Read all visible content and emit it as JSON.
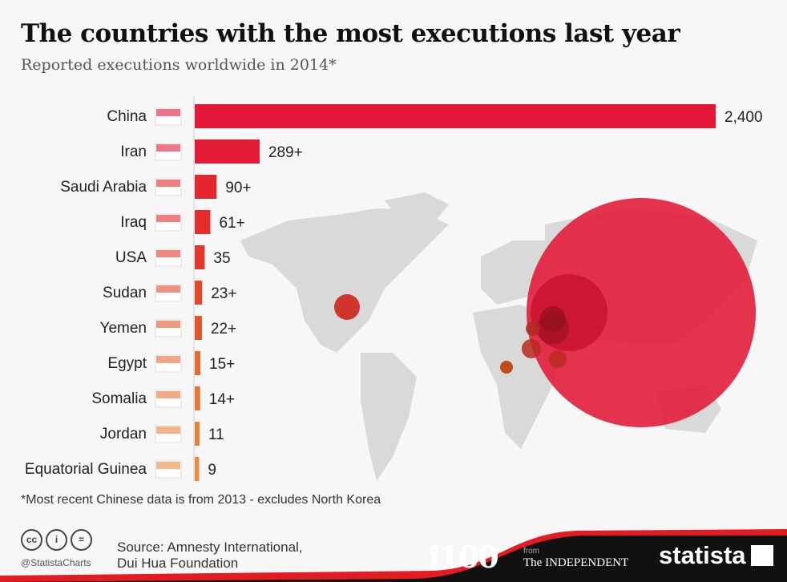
{
  "title": "The countries with the most executions last year",
  "subtitle": "Reported executions worldwide in 2014*",
  "chart_data": {
    "type": "bar",
    "orientation": "horizontal",
    "categories": [
      "China",
      "Iran",
      "Saudi Arabia",
      "Iraq",
      "USA",
      "Sudan",
      "Yemen",
      "Egypt",
      "Somalia",
      "Jordan",
      "Equatorial Guinea"
    ],
    "values": [
      2400,
      289,
      90,
      61,
      35,
      23,
      22,
      15,
      14,
      11,
      9
    ],
    "value_labels": [
      "2,400",
      "289+",
      "90+",
      "61+",
      "35",
      "23+",
      "22+",
      "15+",
      "14+",
      "11",
      "9"
    ],
    "colors": [
      "#e31837",
      "#e31b35",
      "#e4262f",
      "#e52e2c",
      "#e4362a",
      "#e24a2a",
      "#e2552b",
      "#e66b32",
      "#e87535",
      "#e98038",
      "#ea8a3c"
    ]
  },
  "footnote": "*Most recent Chinese data is from 2013 - excludes North Korea",
  "footer": {
    "handle": "@StatistaCharts",
    "source_line1": "Source: Amnesty International,",
    "source_line2": "Dui Hua Foundation",
    "i100": "i100",
    "from": "from",
    "independent": "The INDEPENDENT",
    "statista": "statista",
    "cc_icons": [
      "cc",
      "i",
      "="
    ]
  }
}
